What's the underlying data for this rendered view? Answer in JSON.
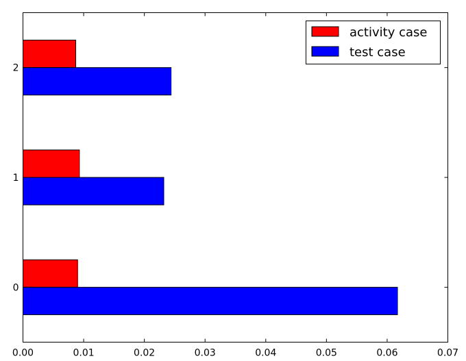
{
  "chart_data": {
    "type": "bar",
    "orientation": "horizontal",
    "categories": [
      "0",
      "1",
      "2"
    ],
    "series": [
      {
        "name": "activity case",
        "color": "#ff0000",
        "values": [
          0.009,
          0.0093,
          0.0087
        ]
      },
      {
        "name": "test case",
        "color": "#0000ff",
        "values": [
          0.0617,
          0.0232,
          0.0244
        ]
      }
    ],
    "xlim": [
      0.0,
      0.07
    ],
    "xticks": [
      "0.00",
      "0.01",
      "0.02",
      "0.03",
      "0.04",
      "0.05",
      "0.06",
      "0.07"
    ],
    "legend_position": "top-right",
    "grid": false
  }
}
